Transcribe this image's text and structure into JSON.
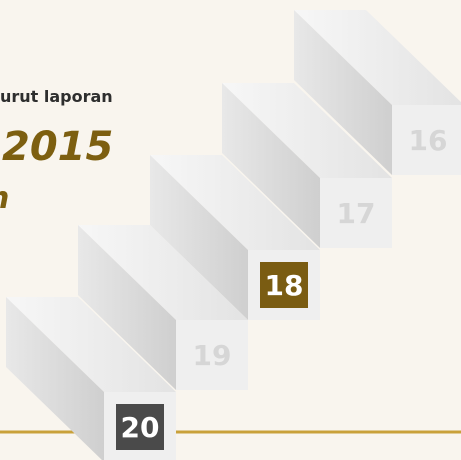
{
  "header": {
    "subtitle": "urut laporan",
    "year": "2015",
    "fragment": "n"
  },
  "steps": [
    "16",
    "17",
    "18",
    "19",
    "20"
  ]
}
